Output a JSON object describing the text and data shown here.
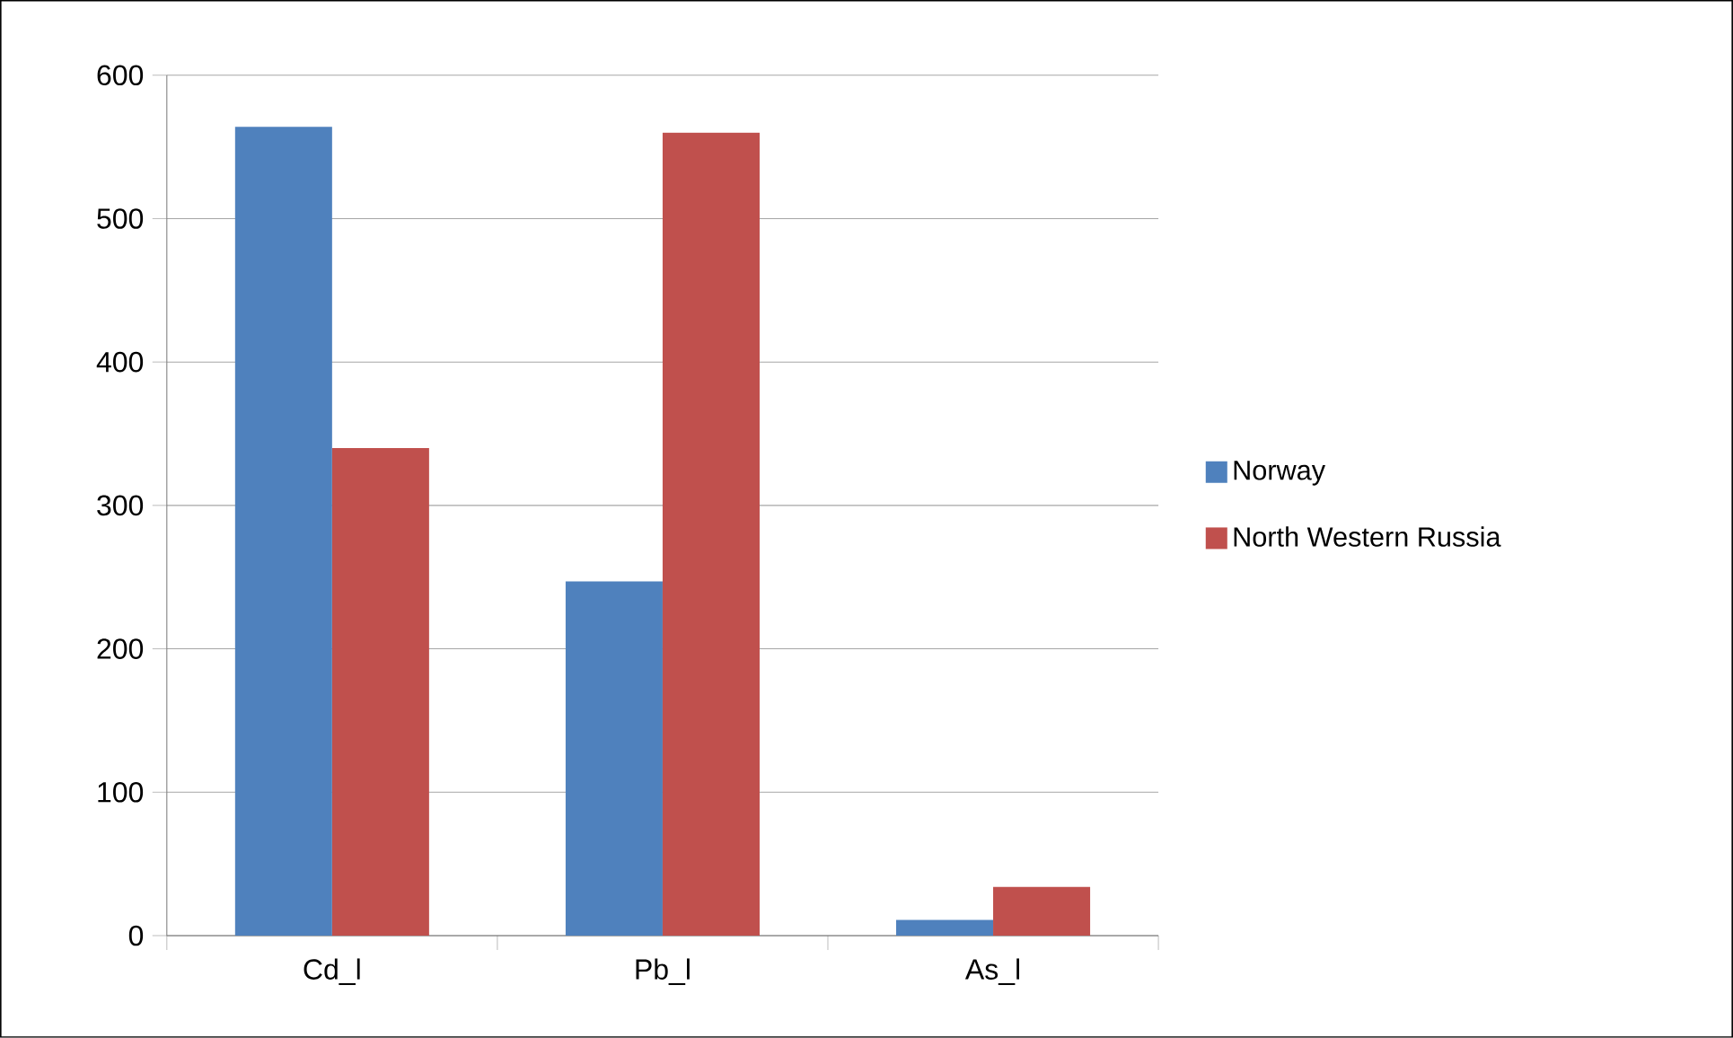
{
  "chart_data": {
    "type": "bar",
    "categories": [
      "Cd_l",
      "Pb_l",
      "As_l"
    ],
    "series": [
      {
        "name": "Norway",
        "color": "#4f81bd",
        "values": [
          564,
          247,
          11
        ]
      },
      {
        "name": "North Western Russia",
        "color": "#c0504d",
        "values": [
          340,
          560,
          34
        ]
      }
    ],
    "ylim": [
      0,
      600
    ],
    "yticks": [
      0,
      100,
      200,
      300,
      400,
      500,
      600
    ],
    "grid": "y",
    "legend": "right"
  }
}
